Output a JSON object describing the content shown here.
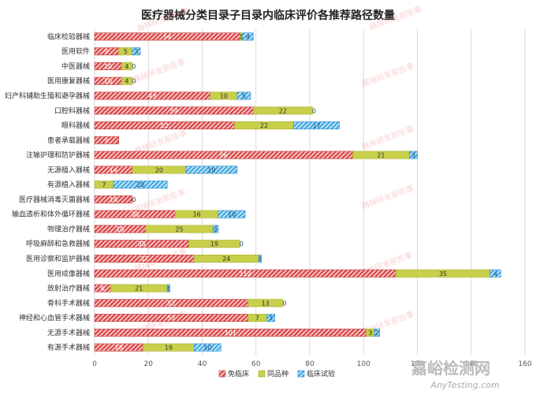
{
  "chart_data": {
    "type": "bar",
    "orientation": "horizontal",
    "stacked": true,
    "title": "医疗器械分类目录子目录内临床评价各推荐路径数量",
    "xlabel": "",
    "ylabel": "",
    "xlim": [
      0,
      160
    ],
    "xticks": [
      0,
      20,
      40,
      60,
      80,
      100,
      120,
      140,
      160
    ],
    "grid": true,
    "legend_position": "bottom",
    "categories": [
      "临床检验器械",
      "医用软件",
      "中医器械",
      "医用康复器械",
      "妇产科辅助生殖和避孕器械",
      "口腔科器械",
      "眼科器械",
      "患者承载器械",
      "注输护理和防护器械",
      "无源植入器械",
      "有源植入器械",
      "医疗器械消毒灭菌器械",
      "输血透析和体外循环器械",
      "物理治疗器械",
      "呼吸麻醉和急救器械",
      "医用诊察和监护器械",
      "医用成像器械",
      "放射治疗器械",
      "骨科手术器械",
      "神经和心血管手术器械",
      "无源手术器械",
      "有源手术器械"
    ],
    "series": [
      {
        "name": "免临床",
        "color": "#e05555",
        "pattern": "diagonal-red",
        "values": [
          54,
          9,
          10,
          10,
          43,
          59,
          52,
          9,
          96,
          14,
          0,
          14,
          30,
          19,
          35,
          37,
          112,
          6,
          57,
          57,
          101,
          18
        ]
      },
      {
        "name": "同品种",
        "color": "#c8cf4a",
        "pattern": "solid",
        "values": [
          1,
          5,
          4,
          4,
          10,
          22,
          22,
          0,
          21,
          20,
          7,
          0,
          16,
          25,
          19,
          24,
          35,
          21,
          13,
          7,
          3,
          19
        ]
      },
      {
        "name": "临床试验",
        "color": "#4db0e8",
        "pattern": "diagonal-blue",
        "values": [
          4,
          3,
          0,
          0,
          5,
          0,
          17,
          0,
          3,
          19,
          20,
          0,
          10,
          2,
          0,
          1,
          4,
          1,
          0,
          3,
          2,
          10
        ]
      }
    ],
    "data_labels": [
      [
        "54",
        "1",
        "4"
      ],
      [
        "9",
        "5",
        "3"
      ],
      [
        "10",
        "4",
        "0"
      ],
      [
        "10",
        "4",
        "0"
      ],
      [
        "43",
        "10",
        "5"
      ],
      [
        "59",
        "22",
        "0"
      ],
      [
        "52",
        "22",
        "17"
      ],
      [
        "9",
        "",
        ""
      ],
      [
        "96",
        "21",
        "3"
      ],
      [
        "14",
        "20",
        "19"
      ],
      [
        "",
        "7",
        "20"
      ],
      [
        "14",
        "0",
        ""
      ],
      [
        "30",
        "16",
        "10"
      ],
      [
        "19",
        "25",
        "2"
      ],
      [
        "35",
        "19",
        "0"
      ],
      [
        "37",
        "24",
        "1"
      ],
      [
        "112",
        "35",
        "4"
      ],
      [
        "6",
        "21",
        "1"
      ],
      [
        "57",
        "13",
        "0"
      ],
      [
        "57",
        "7",
        "3"
      ],
      [
        "101",
        "3",
        "2"
      ],
      [
        "18",
        "19",
        "10"
      ]
    ]
  },
  "watermark": "器械研发那些事",
  "logo": {
    "cn": "嘉峪检测网",
    "en": "AnyTesting.com"
  }
}
